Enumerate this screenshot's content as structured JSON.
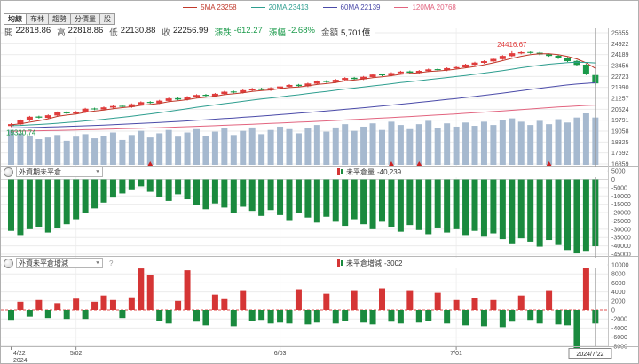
{
  "tabs": {
    "items": [
      {
        "key": "ma",
        "label": "均線",
        "active": true
      },
      {
        "key": "bollinger",
        "label": "布林",
        "active": false
      },
      {
        "key": "trend",
        "label": "趨勢",
        "active": false
      },
      {
        "key": "volume-profile",
        "label": "分價量",
        "active": false
      },
      {
        "key": "stock",
        "label": "股",
        "active": false
      }
    ]
  },
  "legend": {
    "items": [
      {
        "label": "5MA 23258",
        "color": "#c0392b"
      },
      {
        "label": "20MA 23413",
        "color": "#2e9e8f"
      },
      {
        "label": "60MA 22139",
        "color": "#4a4aa8"
      },
      {
        "label": "120MA 20768",
        "color": "#e2647f"
      }
    ]
  },
  "quote": {
    "fields": [
      {
        "key": "open",
        "label": "開",
        "value": "22818.86",
        "label_color": "#555555",
        "value_color": "#222222"
      },
      {
        "key": "high",
        "label": "高",
        "value": "22818.86",
        "label_color": "#555555",
        "value_color": "#222222"
      },
      {
        "key": "low",
        "label": "低",
        "value": "22130.88",
        "label_color": "#555555",
        "value_color": "#222222"
      },
      {
        "key": "close",
        "label": "收",
        "value": "22256.99",
        "label_color": "#555555",
        "value_color": "#222222"
      },
      {
        "key": "change",
        "label": "漲跌",
        "value": "-612.27",
        "label_color": "#1a9a4a",
        "value_color": "#1a9a4a"
      },
      {
        "key": "change-pct",
        "label": "漲幅",
        "value": "-2.68%",
        "label_color": "#1a9a4a",
        "value_color": "#1a9a4a"
      },
      {
        "key": "amount",
        "label": "金額",
        "value": "5,701億",
        "label_color": "#555555",
        "value_color": "#222222"
      }
    ]
  },
  "oi_panel": {
    "selector": "外資期未平倉",
    "stat_label": "未平倉量",
    "stat_value": "-40,239"
  },
  "oi_change_panel": {
    "selector": "外資未平倉增減",
    "help_label": "?",
    "stat_label": "未平倉增減",
    "stat_value": "-3002"
  },
  "chart_data": {
    "type": "candlestick",
    "x_ticks": [
      {
        "index": 0,
        "label": "4/22",
        "sub": "2024"
      },
      {
        "index": 7,
        "label": "5/02"
      },
      {
        "index": 29,
        "label": "6/03"
      },
      {
        "index": 48,
        "label": "7/01"
      }
    ],
    "current_x": {
      "index": 63,
      "label": "2024/7/22"
    },
    "price_panel": {
      "y_ticks": [
        25655,
        24922,
        24189,
        23456,
        22723,
        21990,
        21257,
        20524,
        19791,
        19058,
        18325,
        17592,
        16859
      ],
      "up_color": "#e03c3c",
      "down_color": "#1a9a4a",
      "volume_color": "#a6b9cf",
      "ma": [
        {
          "name": "5MA",
          "window": 5,
          "value": 23258,
          "color": "#c0392b"
        },
        {
          "name": "20MA",
          "window": 20,
          "value": 23413,
          "color": "#2e9e8f"
        },
        {
          "name": "60MA",
          "window": 60,
          "value": 22139,
          "color": "#4a4aa8"
        },
        {
          "name": "120MA",
          "window": 120,
          "value": 20768,
          "color": "#e2647f"
        }
      ],
      "annotations": {
        "high": {
          "index": 54,
          "price": 24416.67,
          "label": "24416.67",
          "color": "#e03c3c"
        },
        "low": {
          "index": 0,
          "price": 19330.74,
          "label": "19330.74",
          "color": "#1a9a4a"
        }
      },
      "signal_indices": [
        15,
        41,
        44,
        58
      ],
      "ohlc": [
        [
          19400,
          19582,
          19330.74,
          19527
        ],
        [
          19512,
          19845,
          19457,
          19790
        ],
        [
          19775,
          20075,
          19720,
          20020
        ],
        [
          20035,
          20090,
          19905,
          19960
        ],
        [
          19945,
          20175,
          19890,
          20120
        ],
        [
          20105,
          20375,
          20050,
          20320
        ],
        [
          20335,
          20390,
          20195,
          20250
        ],
        [
          20235,
          20405,
          20180,
          20350
        ],
        [
          20335,
          20615,
          20280,
          20560
        ],
        [
          20575,
          20630,
          20465,
          20520
        ],
        [
          20505,
          20705,
          20450,
          20650
        ],
        [
          20635,
          20795,
          20580,
          20740
        ],
        [
          20755,
          20810,
          20635,
          20690
        ],
        [
          20675,
          20915,
          20620,
          20860
        ],
        [
          20845,
          21055,
          20790,
          21000
        ],
        [
          21015,
          21070,
          20895,
          20950
        ],
        [
          20935,
          21155,
          20880,
          21100
        ],
        [
          21085,
          21305,
          21030,
          21250
        ],
        [
          21265,
          21320,
          21125,
          21180
        ],
        [
          21165,
          21405,
          21110,
          21350
        ],
        [
          21335,
          21535,
          21280,
          21480
        ],
        [
          21495,
          21550,
          21365,
          21420
        ],
        [
          21405,
          21615,
          21350,
          21560
        ],
        [
          21545,
          21755,
          21490,
          21700
        ],
        [
          21715,
          21770,
          21595,
          21650
        ],
        [
          21635,
          21855,
          21580,
          21800
        ],
        [
          21785,
          21955,
          21730,
          21900
        ],
        [
          21915,
          21970,
          21765,
          21820
        ],
        [
          21805,
          22005,
          21750,
          21950
        ],
        [
          21935,
          22105,
          21880,
          22050
        ],
        [
          22035,
          22205,
          21980,
          22150
        ],
        [
          22165,
          22220,
          22025,
          22080
        ],
        [
          22065,
          22305,
          22010,
          22250
        ],
        [
          22235,
          22455,
          22180,
          22400
        ],
        [
          22415,
          22470,
          22295,
          22350
        ],
        [
          22335,
          22555,
          22280,
          22500
        ],
        [
          22485,
          22675,
          22430,
          22620
        ],
        [
          22635,
          22690,
          22495,
          22550
        ],
        [
          22535,
          22755,
          22480,
          22700
        ],
        [
          22685,
          22905,
          22630,
          22850
        ],
        [
          22865,
          22920,
          22745,
          22800
        ],
        [
          22785,
          23005,
          22730,
          22950
        ],
        [
          22935,
          23105,
          22880,
          23050
        ],
        [
          23065,
          23120,
          22925,
          22980
        ],
        [
          22965,
          23155,
          22910,
          23100
        ],
        [
          23085,
          23255,
          23030,
          23200
        ],
        [
          23215,
          23270,
          23095,
          23150
        ],
        [
          23135,
          23335,
          23080,
          23280
        ],
        [
          23265,
          23405,
          23210,
          23350
        ],
        [
          23335,
          23575,
          23280,
          23520
        ],
        [
          23505,
          23705,
          23450,
          23650
        ],
        [
          23635,
          23805,
          23580,
          23750
        ],
        [
          23735,
          23955,
          23680,
          23900
        ],
        [
          23885,
          24155,
          23830,
          24100
        ],
        [
          24085,
          24416.67,
          24030,
          24280
        ],
        [
          24265,
          24405,
          24210,
          24350
        ],
        [
          24365,
          24400,
          24245,
          24300
        ],
        [
          24315,
          24370,
          24145,
          24200
        ],
        [
          24215,
          24270,
          24045,
          24100
        ],
        [
          24115,
          24170,
          23895,
          23950
        ],
        [
          23965,
          24020,
          23695,
          23750
        ],
        [
          23765,
          23820,
          23445,
          23500
        ],
        [
          23515,
          23570,
          22814,
          22869.26
        ],
        [
          22818.86,
          22818.86,
          22130.88,
          22256.99
        ]
      ],
      "volume": [
        4200,
        3800,
        3500,
        3100,
        3300,
        3600,
        2900,
        3400,
        3700,
        3200,
        3500,
        3900,
        3000,
        3600,
        4100,
        3300,
        3800,
        4200,
        3400,
        3900,
        4300,
        3500,
        4000,
        4400,
        3600,
        4100,
        4500,
        3700,
        4200,
        4600,
        4300,
        3800,
        4400,
        4800,
        4000,
        4500,
        4900,
        4100,
        4600,
        5000,
        4200,
        5200,
        4800,
        4300,
        4900,
        5300,
        4400,
        5000,
        4600,
        5100,
        4700,
        5200,
        4800,
        5400,
        5600,
        5200,
        4800,
        5300,
        4900,
        5500,
        5100,
        5700,
        6200,
        5701
      ]
    },
    "oi_panel": {
      "type": "bar",
      "y_ticks": [
        5000,
        0,
        -5000,
        -10000,
        -15000,
        -20000,
        -25000,
        -30000,
        -35000,
        -40000,
        -45000
      ],
      "bar_color": "#1a8a3e",
      "last_value_label": "-40,239",
      "values": [
        -31000,
        -33500,
        -30000,
        -28500,
        -32000,
        -29500,
        -27000,
        -24000,
        -20000,
        -17500,
        -14000,
        -11000,
        -8500,
        -6000,
        -4200,
        -7500,
        -10500,
        -13000,
        -9000,
        -12000,
        -15500,
        -18000,
        -14500,
        -17000,
        -20500,
        -16500,
        -19000,
        -22000,
        -18500,
        -21500,
        -24500,
        -20000,
        -23000,
        -26000,
        -22500,
        -25500,
        -28000,
        -24000,
        -27000,
        -30000,
        -25500,
        -28500,
        -31500,
        -27500,
        -30500,
        -33000,
        -29000,
        -32000,
        -30000,
        -33500,
        -31000,
        -34500,
        -32500,
        -36000,
        -38500,
        -35500,
        -37500,
        -40500,
        -36500,
        -39500,
        -42500,
        -44500,
        -43000,
        -40239
      ]
    },
    "oi_change_panel": {
      "type": "bar",
      "y_ticks": [
        10000,
        8000,
        6000,
        4000,
        2000,
        0,
        -2000,
        -4000,
        -6000,
        -8000
      ],
      "up_color": "#d53535",
      "down_color": "#1a8a3e",
      "zero_line_color": "#e05050",
      "last_value_label": "-3002",
      "values": [
        -2200,
        1800,
        -1500,
        2200,
        -1800,
        1500,
        -2000,
        2500,
        -2000,
        1800,
        3200,
        2200,
        -1800,
        2800,
        9200,
        7800,
        -2400,
        -3000,
        2000,
        8800,
        -2600,
        -3400,
        3400,
        2400,
        -3600,
        4200,
        -2400,
        -2200,
        -3000,
        -2800,
        -3000,
        4600,
        -3200,
        -2800,
        3600,
        -3000,
        -2400,
        4200,
        -2800,
        -3200,
        4800,
        -2600,
        -3000,
        4200,
        -2800,
        -2400,
        3800,
        -3000,
        2200,
        -3400,
        2600,
        -3600,
        2200,
        -3800,
        -2600,
        3200,
        -2200,
        -3000,
        4200,
        -3200,
        -3400,
        -8800,
        9600,
        -3002
      ]
    }
  }
}
